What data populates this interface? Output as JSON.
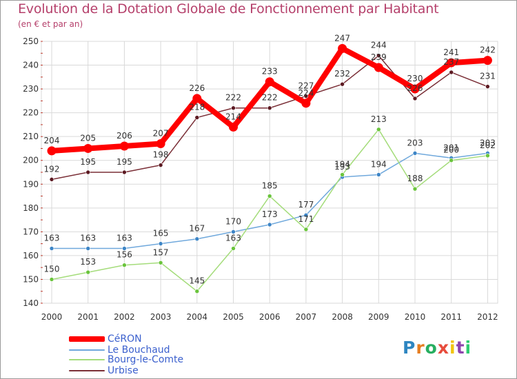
{
  "title": "Evolution de la Dotation Globale de Fonctionnement par Habitant",
  "subtitle": "(en € et par an)",
  "colors": {
    "title": "#b5406b",
    "legend_text": "#3a5fcd",
    "grid": "#d9d9d9",
    "axis_text": "#333333",
    "value_text": "#333333"
  },
  "logo": {
    "text": "Proxiti",
    "letter_colors": [
      "#2e86c1",
      "#e67e22",
      "#27ae60",
      "#e74c3c",
      "#f1c40f",
      "#8e44ad",
      "#2ecc71"
    ]
  },
  "chart_data": {
    "type": "line",
    "title": "Evolution de la Dotation Globale de Fonctionnement par Habitant",
    "subtitle": "(en € et par an)",
    "xlabel": "",
    "ylabel": "",
    "categories": [
      "2000",
      "2001",
      "2002",
      "2003",
      "2004",
      "2005",
      "2006",
      "2007",
      "2008",
      "2009",
      "2010",
      "2011",
      "2012"
    ],
    "ylim": [
      140,
      250
    ],
    "yticks": [
      140,
      150,
      160,
      170,
      180,
      190,
      200,
      210,
      220,
      230,
      240,
      250
    ],
    "grid": true,
    "legend_position": "bottom-left",
    "series": [
      {
        "name": "CéRON",
        "color": "#ff0000",
        "emphasis": true,
        "values": [
          204,
          205,
          206,
          207,
          226,
          214,
          233,
          224,
          247,
          239,
          230,
          241,
          242
        ],
        "labels": [
          "204",
          "205",
          "206",
          "207",
          "226",
          "214",
          "233",
          "224",
          "247",
          "239",
          "230",
          "241",
          "242"
        ]
      },
      {
        "name": "Le Bouchaud",
        "color": "#6fa8dc",
        "marker": "#3d85c6",
        "emphasis": false,
        "values": [
          163,
          163,
          163,
          165,
          167,
          170,
          173,
          177,
          193,
          194,
          203,
          201,
          203
        ],
        "labels": [
          "163",
          "163",
          "163",
          "165",
          "167",
          "170",
          "173",
          "177",
          "193",
          "194",
          "203",
          "201",
          "203"
        ]
      },
      {
        "name": "Bourg-le-Comte",
        "color": "#a4dc7a",
        "marker": "#6ac43c",
        "emphasis": false,
        "values": [
          150,
          153,
          156,
          157,
          145,
          163,
          185,
          171,
          194,
          213,
          188,
          200,
          202
        ],
        "labels": [
          "150",
          "153",
          "156",
          "157",
          "145",
          "163",
          "185",
          "171",
          "194",
          "213",
          "188",
          "200",
          "202"
        ]
      },
      {
        "name": "Urbise",
        "color": "#7a2e36",
        "marker": "#5c1a22",
        "emphasis": false,
        "values": [
          192,
          195,
          195,
          198,
          218,
          222,
          222,
          227,
          232,
          244,
          226,
          237,
          231
        ],
        "labels": [
          "192",
          "195",
          "195",
          "198",
          "218",
          "222",
          "222",
          "227",
          "232",
          "244",
          "226",
          "237",
          "231"
        ]
      }
    ]
  }
}
